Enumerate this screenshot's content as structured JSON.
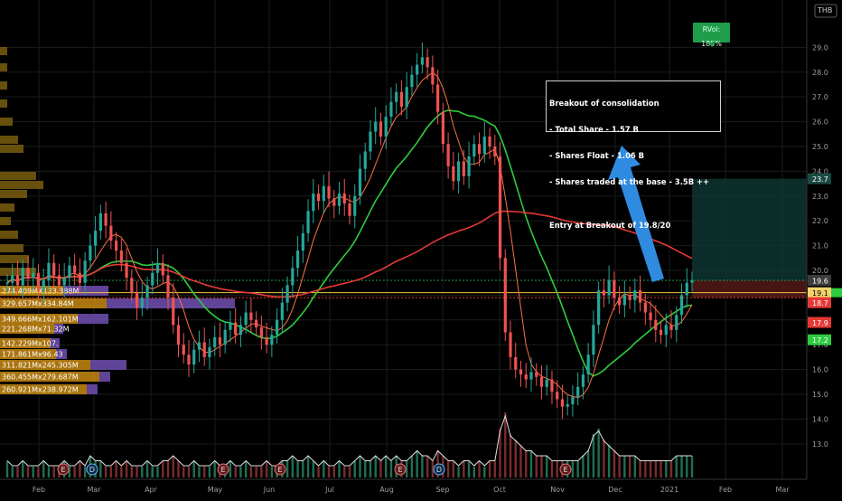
{
  "symbol": "THB",
  "chart_data": {
    "type": "candlestick",
    "y_axis": {
      "ticks": [
        "29.0",
        "28.0",
        "27.0",
        "26.0",
        "25.0",
        "24.0",
        "23.0",
        "22.0",
        "21.0",
        "20.0",
        "19.0",
        "18.0",
        "17.0",
        "16.0",
        "15.0",
        "14.0",
        "13.0"
      ],
      "ylim": [
        12.3,
        30.4
      ],
      "price_labels": [
        {
          "text": "23.7",
          "value": 23.7,
          "color": "#1b4a43"
        },
        {
          "text": "19.6",
          "value": 19.6,
          "color": "#3c3c3c"
        },
        {
          "text": "19.1",
          "value": 19.1,
          "color": "#f1d36a"
        },
        {
          "text": "18.7",
          "value": 18.7,
          "color": "#e53935"
        },
        {
          "text": "17.9",
          "value": 17.9,
          "color": "#e53935"
        },
        {
          "text": "17.2",
          "value": 17.2,
          "color": "#2ecc40"
        }
      ]
    },
    "x_axis": {
      "months": [
        "Feb",
        "Mar",
        "Apr",
        "May",
        "Jun",
        "Jul",
        "Aug",
        "Sep",
        "Oct",
        "Nov",
        "Dec",
        "2021",
        "Feb",
        "Mar"
      ]
    },
    "price_series": [
      19.5,
      19.8,
      19.4,
      20.1,
      19.7,
      19.9,
      19.2,
      19.6,
      20.3,
      19.8,
      19.4,
      19.7,
      20.2,
      19.9,
      19.5,
      20.4,
      21.0,
      21.6,
      22.3,
      21.8,
      21.2,
      20.8,
      20.3,
      19.7,
      19.1,
      18.5,
      18.9,
      19.4,
      19.9,
      20.3,
      19.8,
      18.9,
      17.8,
      17.0,
      16.6,
      16.2,
      16.8,
      17.1,
      16.5,
      16.9,
      17.3,
      17.0,
      17.6,
      17.9,
      17.4,
      17.8,
      18.3,
      18.0,
      17.7,
      17.3,
      17.0,
      17.4,
      18.0,
      18.7,
      19.4,
      20.1,
      20.8,
      21.5,
      22.4,
      23.1,
      22.8,
      23.4,
      22.9,
      22.6,
      23.1,
      22.7,
      22.2,
      23.0,
      24.1,
      24.8,
      25.6,
      26.0,
      25.4,
      26.2,
      26.8,
      27.2,
      26.6,
      27.4,
      27.9,
      28.3,
      28.6,
      28.2,
      27.5,
      26.4,
      25.1,
      24.2,
      23.6,
      24.4,
      23.8,
      24.6,
      25.1,
      24.7,
      25.4,
      25.0,
      24.6,
      20.5,
      17.5,
      16.5,
      16.0,
      15.8,
      15.6,
      15.9,
      15.7,
      15.3,
      15.6,
      15.1,
      14.8,
      14.5,
      14.6,
      14.9,
      15.3,
      15.8,
      16.6,
      17.8,
      19.2,
      19.0,
      19.6,
      18.9,
      18.6,
      19.0,
      18.8,
      19.2,
      18.7,
      18.3,
      18.0,
      17.6,
      17.4,
      17.8,
      17.6,
      18.2,
      19.0,
      19.5,
      19.6
    ],
    "volume": [
      3,
      2,
      2,
      3,
      2,
      2,
      2,
      3,
      2,
      2,
      2,
      3,
      2,
      2,
      3,
      2,
      4,
      3,
      3,
      2,
      2,
      3,
      2,
      3,
      2,
      2,
      2,
      3,
      2,
      2,
      3,
      3,
      4,
      3,
      2,
      2,
      3,
      2,
      2,
      2,
      3,
      2,
      2,
      3,
      2,
      2,
      3,
      2,
      2,
      2,
      3,
      2,
      2,
      3,
      3,
      4,
      3,
      3,
      4,
      3,
      2,
      3,
      2,
      2,
      3,
      2,
      2,
      3,
      4,
      3,
      3,
      4,
      3,
      4,
      3,
      4,
      3,
      3,
      4,
      5,
      4,
      4,
      3,
      5,
      4,
      3,
      3,
      2,
      3,
      3,
      2,
      3,
      2,
      3,
      3,
      9,
      12,
      8,
      7,
      6,
      5,
      5,
      4,
      4,
      4,
      3,
      3,
      3,
      3,
      3,
      3,
      4,
      5,
      8,
      9,
      7,
      6,
      5,
      4,
      4,
      4,
      4,
      3,
      3,
      3,
      3,
      3,
      3,
      3,
      4,
      4,
      4,
      4
    ],
    "moving_averages": [
      {
        "name": "MA1",
        "color": "#2ecc40"
      },
      {
        "name": "MA2",
        "color": "#e53935"
      },
      {
        "name": "MA3",
        "color": "#ff7043"
      }
    ],
    "levels": [
      {
        "value": 19.6,
        "style": "dotted",
        "color": "#1f9d4a"
      },
      {
        "value": 19.1,
        "style": "solid",
        "color": "#f5c242"
      },
      {
        "value": 18.9,
        "style": "dotted",
        "color": "#e53935"
      }
    ],
    "volume_profile_labels": [
      "274.409MX123.388M",
      "329.657Mx334.84M",
      "349.666Mx162.101M",
      "221.268Mx71.32M",
      "142.229Mx107.",
      "171.861Mx96.43",
      "311.821Mx245.305M",
      "360.455Mx279.687M",
      "260.921Mx238.972M"
    ],
    "event_markers": [
      "E",
      "D",
      "E",
      "E",
      "E",
      "D",
      "E"
    ]
  },
  "annotation": {
    "lines": [
      "Breakout of consolidation",
      "- Total Share - 1.57 B",
      "- Shares Float - 1.06 B",
      "- Shares traded at the base - 3.5B ++",
      "",
      "Entry at Breakout of 19.8/20"
    ]
  },
  "rvol_label": "RVol: 185%"
}
